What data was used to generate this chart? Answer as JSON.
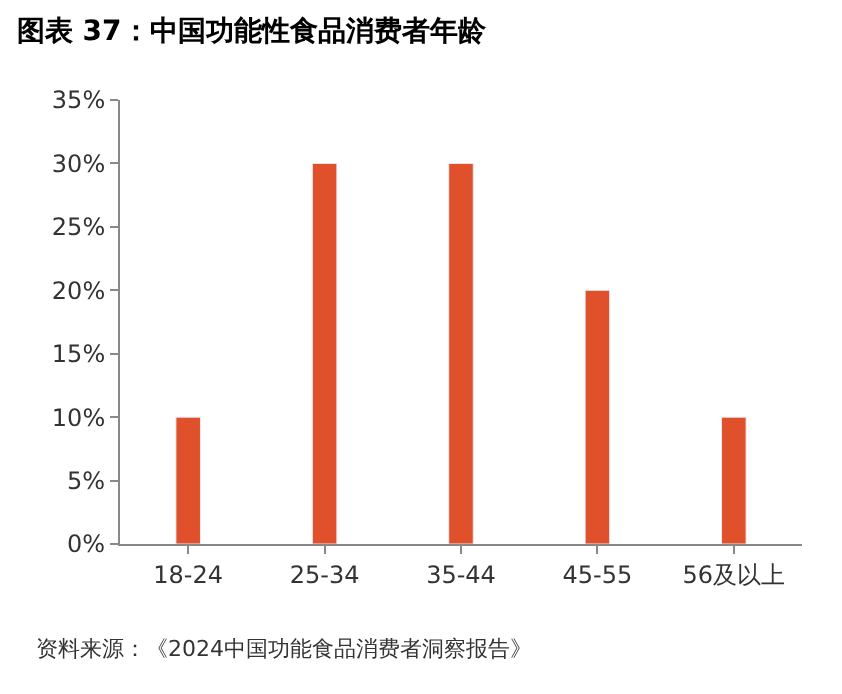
{
  "chart_data": {
    "type": "bar",
    "title": "图表 37：中国功能性食品消费者年龄",
    "categories": [
      "18-24",
      "25-34",
      "35-44",
      "45-55",
      "56及以上"
    ],
    "values": [
      0.1,
      0.3,
      0.3,
      0.2,
      0.1
    ],
    "color": "#e0502a",
    "ylim": [
      0,
      0.35
    ],
    "yticks": [
      {
        "value": 0,
        "label": "0%"
      },
      {
        "value": 0.05,
        "label": "5%"
      },
      {
        "value": 0.1,
        "label": "10%"
      },
      {
        "value": 0.15,
        "label": "15%"
      },
      {
        "value": 0.2,
        "label": "20%"
      },
      {
        "value": 0.25,
        "label": "25%"
      },
      {
        "value": 0.3,
        "label": "30%"
      },
      {
        "value": 0.35,
        "label": "35%"
      }
    ],
    "annotations": [
      "资料来源：《2024中国功能食品消费者洞察报告》"
    ]
  }
}
